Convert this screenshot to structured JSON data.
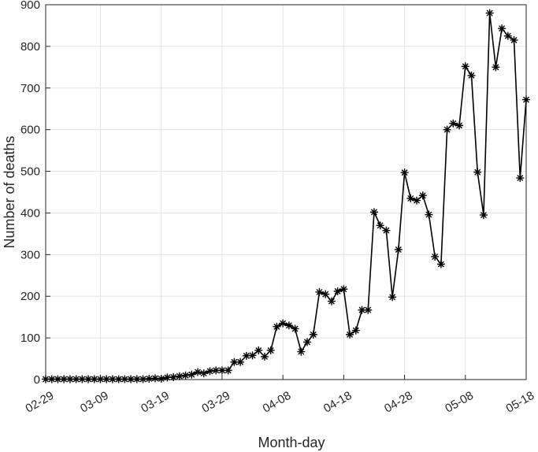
{
  "chart_data": {
    "type": "line",
    "xlabel": "Month-day",
    "ylabel": "Number of deaths",
    "x": [
      "02-29",
      "03-01",
      "03-02",
      "03-03",
      "03-04",
      "03-05",
      "03-06",
      "03-07",
      "03-08",
      "03-09",
      "03-10",
      "03-11",
      "03-12",
      "03-13",
      "03-14",
      "03-15",
      "03-16",
      "03-17",
      "03-18",
      "03-19",
      "03-20",
      "03-21",
      "03-22",
      "03-23",
      "03-24",
      "03-25",
      "03-26",
      "03-27",
      "03-28",
      "03-29",
      "03-30",
      "03-31",
      "04-01",
      "04-02",
      "04-03",
      "04-04",
      "04-05",
      "04-06",
      "04-07",
      "04-08",
      "04-09",
      "04-10",
      "04-11",
      "04-12",
      "04-13",
      "04-14",
      "04-15",
      "04-16",
      "04-17",
      "04-18",
      "04-19",
      "04-20",
      "04-21",
      "04-22",
      "04-23",
      "04-24",
      "04-25",
      "04-26",
      "04-27",
      "04-28",
      "04-29",
      "04-30",
      "05-01",
      "05-02",
      "05-03",
      "05-04",
      "05-05",
      "05-06",
      "05-07",
      "05-08",
      "05-09",
      "05-10",
      "05-11",
      "05-12",
      "05-13",
      "05-14",
      "05-15",
      "05-16",
      "05-17",
      "05-18"
    ],
    "series": [
      {
        "color": "#000000",
        "values": [
          1,
          1,
          1,
          1,
          1,
          1,
          1,
          1,
          1,
          1,
          1,
          1,
          1,
          1,
          1,
          1,
          1,
          2,
          3,
          2,
          5,
          6,
          8,
          10,
          12,
          18,
          15,
          20,
          22,
          22,
          22,
          42,
          42,
          57,
          58,
          70,
          55,
          70,
          127,
          135,
          130,
          122,
          67,
          90,
          108,
          210,
          205,
          188,
          212,
          217,
          108,
          118,
          167,
          167,
          402,
          370,
          358,
          198,
          312,
          497,
          435,
          430,
          442,
          396,
          295,
          277,
          600,
          615,
          610,
          752,
          730,
          498,
          395,
          880,
          750,
          843,
          825,
          815,
          484,
          672
        ]
      }
    ],
    "xticks": [
      "02-29",
      "03-09",
      "03-19",
      "03-29",
      "04-08",
      "04-18",
      "04-28",
      "05-08",
      "05-18"
    ],
    "ylim": [
      0,
      900
    ],
    "yticks": [
      0,
      100,
      200,
      300,
      400,
      500,
      600,
      700,
      800,
      900
    ],
    "grid": true
  }
}
